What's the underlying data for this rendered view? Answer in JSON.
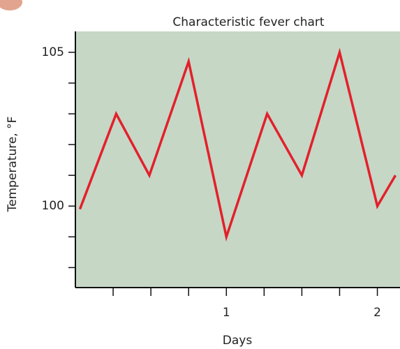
{
  "chart_data": {
    "type": "line",
    "title": "Characteristic fever chart",
    "x_label": "Days",
    "y_label": "Temperature, °F",
    "x": [
      0.03,
      0.27,
      0.49,
      0.75,
      1.0,
      1.27,
      1.5,
      1.75,
      2.0,
      2.12
    ],
    "series": [
      {
        "name": "Temperature",
        "color": "#e3202b",
        "values": [
          99.9,
          103,
          101,
          104.7,
          99,
          103,
          101,
          105,
          100,
          101
        ]
      }
    ],
    "xlim": [
      0,
      2.15
    ],
    "xticks": [
      1,
      2
    ],
    "x_minor_ticks": [
      0.25,
      0.5,
      0.75,
      1.25,
      1.5,
      1.75
    ],
    "ylim": [
      97.35,
      105.68
    ],
    "yticks": [
      100,
      105
    ],
    "y_minor_ticks": [
      98,
      99,
      101,
      102,
      103,
      104
    ],
    "plot_background": "#c6d7c6"
  }
}
